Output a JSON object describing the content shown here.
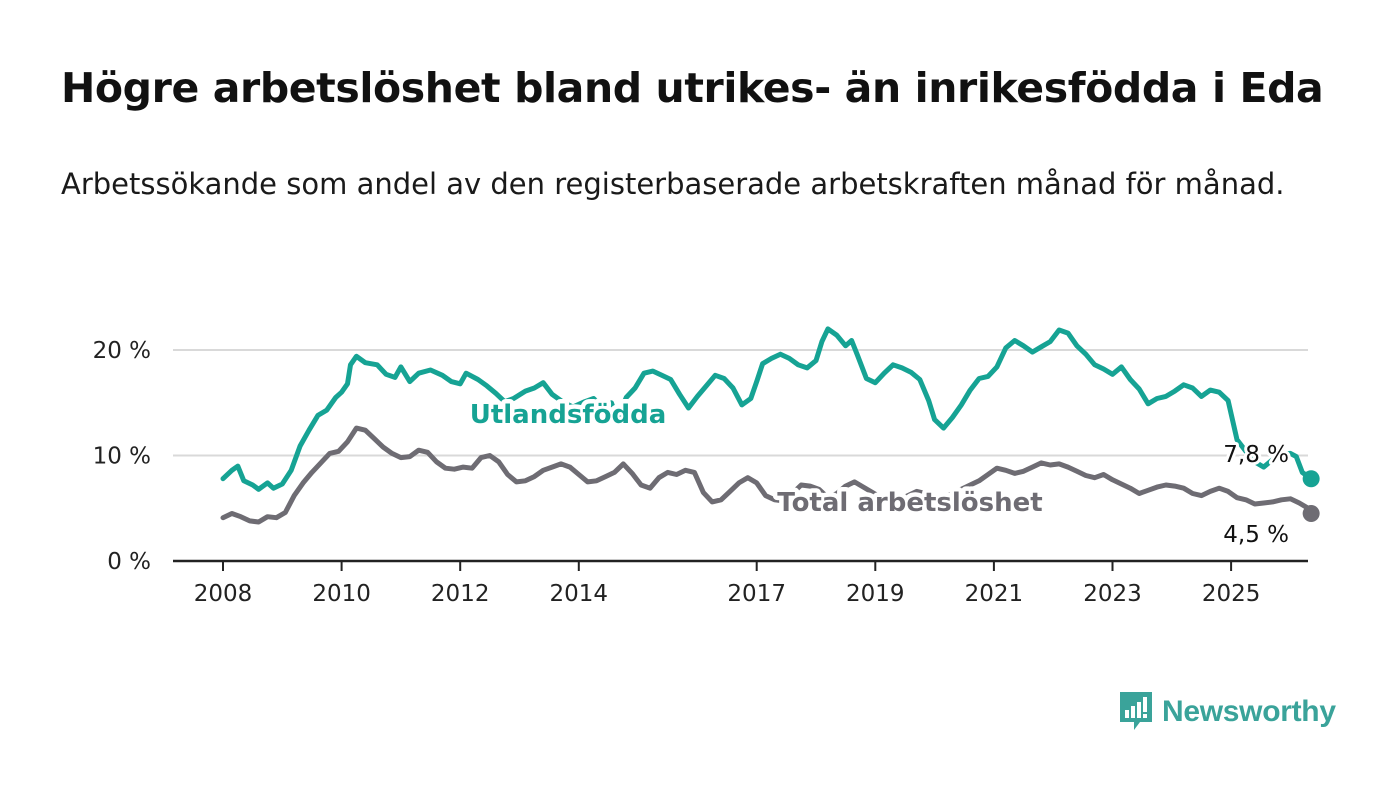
{
  "title": "Högre arbetslöshet bland utrikes- än inrikesfödda i Eda",
  "subtitle": "Arbetssökande som andel av den registerbaserade arbetskraften månad för månad.",
  "brand": {
    "name": "Newsworthy",
    "color": "#3aa39a",
    "icon": "bar-chart-speech-bubble-icon"
  },
  "chart_data": {
    "type": "line",
    "x_range": [
      2008,
      2025.5
    ],
    "ylim": [
      0,
      22
    ],
    "y_ticks": [
      {
        "value": 0,
        "label": "0 %"
      },
      {
        "value": 10,
        "label": "10 %"
      },
      {
        "value": 20,
        "label": "20 %"
      }
    ],
    "x_ticks": [
      {
        "value": 2008,
        "label": "2008"
      },
      {
        "value": 2010,
        "label": "2010"
      },
      {
        "value": 2012,
        "label": "2012"
      },
      {
        "value": 2014,
        "label": "2014"
      },
      {
        "value": 2017,
        "label": "2017"
      },
      {
        "value": 2019,
        "label": "2019"
      },
      {
        "value": 2021,
        "label": "2021"
      },
      {
        "value": 2023,
        "label": "2023"
      },
      {
        "value": 2025,
        "label": "2025"
      }
    ],
    "grid": "horizontal",
    "series": [
      {
        "name": "Utlandsfödda",
        "color": "#16a394",
        "end_label": "7,8 %",
        "points": [
          [
            2008.0,
            7.8
          ],
          [
            2008.15,
            8.6
          ],
          [
            2008.25,
            9.0
          ],
          [
            2008.35,
            7.6
          ],
          [
            2008.5,
            7.2
          ],
          [
            2008.6,
            6.8
          ],
          [
            2008.75,
            7.4
          ],
          [
            2008.85,
            6.9
          ],
          [
            2009.0,
            7.3
          ],
          [
            2009.15,
            8.6
          ],
          [
            2009.3,
            10.9
          ],
          [
            2009.45,
            12.4
          ],
          [
            2009.6,
            13.8
          ],
          [
            2009.75,
            14.3
          ],
          [
            2009.9,
            15.5
          ],
          [
            2010.0,
            16.0
          ],
          [
            2010.1,
            16.8
          ],
          [
            2010.15,
            18.6
          ],
          [
            2010.25,
            19.4
          ],
          [
            2010.4,
            18.8
          ],
          [
            2010.6,
            18.6
          ],
          [
            2010.75,
            17.7
          ],
          [
            2010.9,
            17.4
          ],
          [
            2011.0,
            18.4
          ],
          [
            2011.15,
            17.0
          ],
          [
            2011.3,
            17.8
          ],
          [
            2011.5,
            18.1
          ],
          [
            2011.7,
            17.6
          ],
          [
            2011.85,
            17.0
          ],
          [
            2012.0,
            16.8
          ],
          [
            2012.1,
            17.8
          ],
          [
            2012.3,
            17.2
          ],
          [
            2012.45,
            16.6
          ],
          [
            2012.6,
            15.9
          ],
          [
            2012.75,
            15.1
          ],
          [
            2012.9,
            15.4
          ],
          [
            2013.1,
            16.1
          ],
          [
            2013.25,
            16.4
          ],
          [
            2013.4,
            16.9
          ],
          [
            2013.55,
            15.8
          ],
          [
            2013.75,
            15.0
          ],
          [
            2013.9,
            14.6
          ],
          [
            2014.1,
            15.1
          ],
          [
            2014.25,
            15.4
          ],
          [
            2014.4,
            14.6
          ],
          [
            2014.55,
            15.0
          ],
          [
            2014.65,
            13.4
          ],
          [
            2014.8,
            15.5
          ],
          [
            2014.95,
            16.4
          ],
          [
            2015.1,
            17.8
          ],
          [
            2015.25,
            18.0
          ],
          [
            2015.4,
            17.6
          ],
          [
            2015.55,
            17.2
          ],
          [
            2015.7,
            15.8
          ],
          [
            2015.85,
            14.5
          ],
          [
            2016.0,
            15.6
          ],
          [
            2016.15,
            16.6
          ],
          [
            2016.3,
            17.6
          ],
          [
            2016.45,
            17.3
          ],
          [
            2016.6,
            16.4
          ],
          [
            2016.75,
            14.8
          ],
          [
            2016.9,
            15.4
          ],
          [
            2017.0,
            17.0
          ],
          [
            2017.1,
            18.7
          ],
          [
            2017.25,
            19.2
          ],
          [
            2017.4,
            19.6
          ],
          [
            2017.55,
            19.2
          ],
          [
            2017.7,
            18.6
          ],
          [
            2017.85,
            18.3
          ],
          [
            2018.0,
            19.0
          ],
          [
            2018.1,
            20.8
          ],
          [
            2018.2,
            22.0
          ],
          [
            2018.35,
            21.4
          ],
          [
            2018.5,
            20.4
          ],
          [
            2018.6,
            20.9
          ],
          [
            2018.7,
            19.5
          ],
          [
            2018.85,
            17.3
          ],
          [
            2019.0,
            16.9
          ],
          [
            2019.15,
            17.8
          ],
          [
            2019.3,
            18.6
          ],
          [
            2019.45,
            18.3
          ],
          [
            2019.6,
            17.9
          ],
          [
            2019.75,
            17.2
          ],
          [
            2019.9,
            15.2
          ],
          [
            2020.0,
            13.4
          ],
          [
            2020.15,
            12.6
          ],
          [
            2020.3,
            13.6
          ],
          [
            2020.45,
            14.8
          ],
          [
            2020.6,
            16.2
          ],
          [
            2020.75,
            17.3
          ],
          [
            2020.9,
            17.5
          ],
          [
            2021.05,
            18.4
          ],
          [
            2021.2,
            20.2
          ],
          [
            2021.35,
            20.9
          ],
          [
            2021.5,
            20.4
          ],
          [
            2021.65,
            19.8
          ],
          [
            2021.8,
            20.3
          ],
          [
            2021.95,
            20.8
          ],
          [
            2022.1,
            21.9
          ],
          [
            2022.25,
            21.6
          ],
          [
            2022.4,
            20.4
          ],
          [
            2022.55,
            19.6
          ],
          [
            2022.7,
            18.6
          ],
          [
            2022.85,
            18.2
          ],
          [
            2023.0,
            17.7
          ],
          [
            2023.15,
            18.4
          ],
          [
            2023.3,
            17.2
          ],
          [
            2023.45,
            16.3
          ],
          [
            2023.6,
            14.9
          ],
          [
            2023.75,
            15.4
          ],
          [
            2023.9,
            15.6
          ],
          [
            2024.05,
            16.1
          ],
          [
            2024.2,
            16.7
          ],
          [
            2024.35,
            16.4
          ],
          [
            2024.5,
            15.6
          ],
          [
            2024.65,
            16.2
          ],
          [
            2024.8,
            16.0
          ],
          [
            2024.95,
            15.2
          ],
          [
            2025.1,
            11.5
          ],
          [
            2025.25,
            10.4
          ],
          [
            2025.4,
            9.4
          ],
          [
            2025.55,
            8.9
          ],
          [
            2025.7,
            9.6
          ],
          [
            2025.85,
            10.1
          ],
          [
            2026.0,
            10.2
          ],
          [
            2026.1,
            9.9
          ],
          [
            2026.2,
            8.4
          ],
          [
            2026.35,
            7.8
          ]
        ]
      },
      {
        "name": "Total arbetslöshet",
        "color": "#6e6c73",
        "end_label": "4,5 %",
        "points": [
          [
            2008.0,
            4.1
          ],
          [
            2008.15,
            4.5
          ],
          [
            2008.3,
            4.2
          ],
          [
            2008.45,
            3.8
          ],
          [
            2008.6,
            3.7
          ],
          [
            2008.75,
            4.2
          ],
          [
            2008.9,
            4.1
          ],
          [
            2009.05,
            4.6
          ],
          [
            2009.2,
            6.2
          ],
          [
            2009.35,
            7.4
          ],
          [
            2009.5,
            8.4
          ],
          [
            2009.65,
            9.3
          ],
          [
            2009.8,
            10.2
          ],
          [
            2009.95,
            10.4
          ],
          [
            2010.1,
            11.3
          ],
          [
            2010.25,
            12.6
          ],
          [
            2010.4,
            12.4
          ],
          [
            2010.55,
            11.6
          ],
          [
            2010.7,
            10.8
          ],
          [
            2010.85,
            10.2
          ],
          [
            2011.0,
            9.8
          ],
          [
            2011.15,
            9.9
          ],
          [
            2011.3,
            10.5
          ],
          [
            2011.45,
            10.3
          ],
          [
            2011.6,
            9.4
          ],
          [
            2011.75,
            8.8
          ],
          [
            2011.9,
            8.7
          ],
          [
            2012.05,
            8.9
          ],
          [
            2012.2,
            8.8
          ],
          [
            2012.35,
            9.8
          ],
          [
            2012.5,
            10.0
          ],
          [
            2012.65,
            9.4
          ],
          [
            2012.8,
            8.2
          ],
          [
            2012.95,
            7.5
          ],
          [
            2013.1,
            7.6
          ],
          [
            2013.25,
            8.0
          ],
          [
            2013.4,
            8.6
          ],
          [
            2013.55,
            8.9
          ],
          [
            2013.7,
            9.2
          ],
          [
            2013.85,
            8.9
          ],
          [
            2014.0,
            8.2
          ],
          [
            2014.15,
            7.5
          ],
          [
            2014.3,
            7.6
          ],
          [
            2014.45,
            8.0
          ],
          [
            2014.6,
            8.4
          ],
          [
            2014.75,
            9.2
          ],
          [
            2014.9,
            8.3
          ],
          [
            2015.05,
            7.2
          ],
          [
            2015.2,
            6.9
          ],
          [
            2015.35,
            7.9
          ],
          [
            2015.5,
            8.4
          ],
          [
            2015.65,
            8.2
          ],
          [
            2015.8,
            8.6
          ],
          [
            2015.95,
            8.4
          ],
          [
            2016.1,
            6.5
          ],
          [
            2016.25,
            5.6
          ],
          [
            2016.4,
            5.8
          ],
          [
            2016.55,
            6.6
          ],
          [
            2016.7,
            7.4
          ],
          [
            2016.85,
            7.9
          ],
          [
            2017.0,
            7.4
          ],
          [
            2017.15,
            6.2
          ],
          [
            2017.3,
            5.8
          ],
          [
            2017.45,
            5.7
          ],
          [
            2017.6,
            6.4
          ],
          [
            2017.75,
            7.2
          ],
          [
            2017.9,
            7.1
          ],
          [
            2018.05,
            6.8
          ],
          [
            2018.2,
            6.0
          ],
          [
            2018.35,
            6.4
          ],
          [
            2018.5,
            7.1
          ],
          [
            2018.65,
            7.5
          ],
          [
            2018.8,
            7.0
          ],
          [
            2018.95,
            6.5
          ],
          [
            2019.1,
            6.0
          ],
          [
            2019.25,
            5.7
          ],
          [
            2019.4,
            5.8
          ],
          [
            2019.55,
            6.2
          ],
          [
            2019.7,
            6.6
          ],
          [
            2019.85,
            6.4
          ],
          [
            2020.0,
            6.2
          ],
          [
            2020.15,
            6.0
          ],
          [
            2020.3,
            6.4
          ],
          [
            2020.45,
            6.8
          ],
          [
            2020.6,
            7.2
          ],
          [
            2020.75,
            7.6
          ],
          [
            2020.9,
            8.2
          ],
          [
            2021.05,
            8.8
          ],
          [
            2021.2,
            8.6
          ],
          [
            2021.35,
            8.3
          ],
          [
            2021.5,
            8.5
          ],
          [
            2021.65,
            8.9
          ],
          [
            2021.8,
            9.3
          ],
          [
            2021.95,
            9.1
          ],
          [
            2022.1,
            9.2
          ],
          [
            2022.25,
            8.9
          ],
          [
            2022.4,
            8.5
          ],
          [
            2022.55,
            8.1
          ],
          [
            2022.7,
            7.9
          ],
          [
            2022.85,
            8.2
          ],
          [
            2023.0,
            7.7
          ],
          [
            2023.15,
            7.3
          ],
          [
            2023.3,
            6.9
          ],
          [
            2023.45,
            6.4
          ],
          [
            2023.6,
            6.7
          ],
          [
            2023.75,
            7.0
          ],
          [
            2023.9,
            7.2
          ],
          [
            2024.05,
            7.1
          ],
          [
            2024.2,
            6.9
          ],
          [
            2024.35,
            6.4
          ],
          [
            2024.5,
            6.2
          ],
          [
            2024.65,
            6.6
          ],
          [
            2024.8,
            6.9
          ],
          [
            2024.95,
            6.6
          ],
          [
            2025.1,
            6.0
          ],
          [
            2025.25,
            5.8
          ],
          [
            2025.4,
            5.4
          ],
          [
            2025.55,
            5.5
          ],
          [
            2025.7,
            5.6
          ],
          [
            2025.85,
            5.8
          ],
          [
            2026.0,
            5.9
          ],
          [
            2026.15,
            5.5
          ],
          [
            2026.3,
            5.0
          ],
          [
            2026.35,
            4.5
          ]
        ]
      }
    ]
  }
}
